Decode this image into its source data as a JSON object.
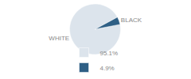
{
  "chart_data": {
    "type": "pie",
    "categories": [
      "WHITE",
      "BLACK"
    ],
    "values": [
      95.1,
      4.9
    ],
    "value_labels": [
      "95.1%",
      "4.9%"
    ],
    "colors": [
      "#dce4ec",
      "#2e5f85"
    ],
    "legend": "bottom"
  }
}
